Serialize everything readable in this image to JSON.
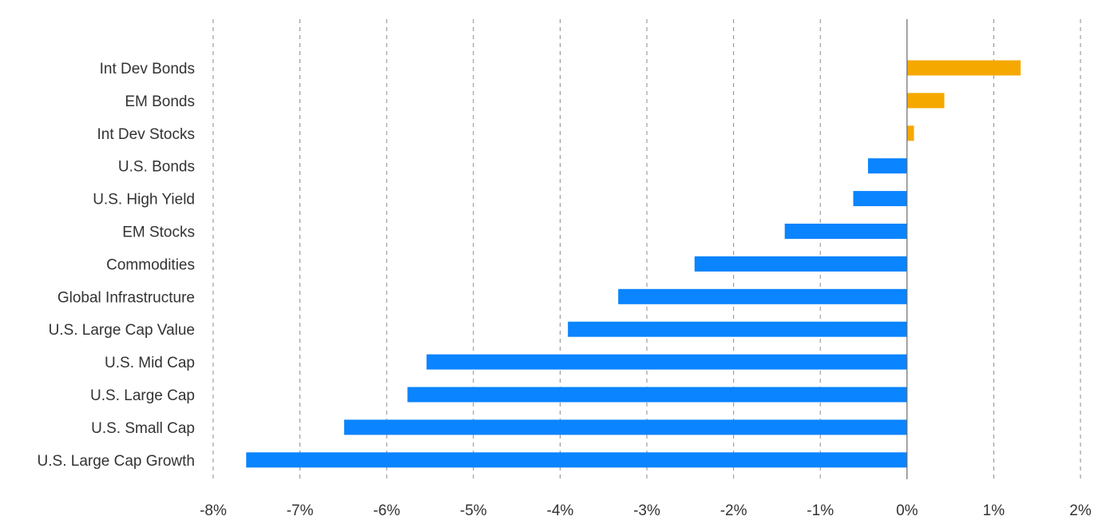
{
  "chart_data": {
    "type": "bar",
    "orientation": "horizontal",
    "categories": [
      "Int Dev Bonds",
      "EM Bonds",
      "Int Dev Stocks",
      "U.S. Bonds",
      "U.S. High Yield",
      "EM Stocks",
      "Commodities",
      "Global Infrastructure",
      "U.S. Large Cap Value",
      "U.S. Mid Cap",
      "U.S. Large Cap",
      "U.S. Small Cap",
      "U.S. Large Cap Growth"
    ],
    "values": [
      1.31,
      0.43,
      0.08,
      -0.45,
      -0.62,
      -1.41,
      -2.45,
      -3.33,
      -3.91,
      -5.54,
      -5.76,
      -6.49,
      -7.62
    ],
    "xlim": [
      -8,
      2
    ],
    "x_ticks": [
      -8,
      -7,
      -6,
      -5,
      -4,
      -3,
      -2,
      -1,
      0,
      1,
      2
    ],
    "x_tick_labels": [
      "-8%",
      "-7%",
      "-6%",
      "-5%",
      "-4%",
      "-3%",
      "-2%",
      "-1%",
      "0%",
      "1%",
      "2%"
    ],
    "title": "",
    "xlabel": "",
    "ylabel": "",
    "grid": "vertical dashed",
    "legend": "none",
    "colors": {
      "positive": "#F5A800",
      "negative": "#0A84FF",
      "text": "#333333",
      "grid": "#8a8a8a",
      "zero_line": "#6b6b6b"
    }
  }
}
